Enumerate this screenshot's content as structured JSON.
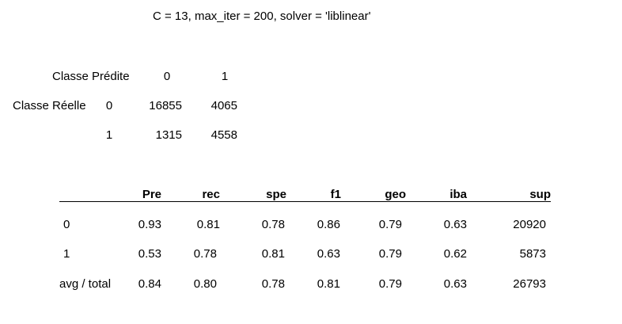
{
  "title": "C = 13, max_iter = 200, solver = 'liblinear'",
  "confusion_matrix": {
    "predicted_label": "Classe Prédite",
    "actual_label": "Classe Réelle",
    "pred_classes": [
      "0",
      "1"
    ],
    "rows": [
      {
        "class": "0",
        "values": [
          "16855",
          "4065"
        ]
      },
      {
        "class": "1",
        "values": [
          "1315",
          "4558"
        ]
      }
    ]
  },
  "report": {
    "headers": [
      "Pre",
      "rec",
      "spe",
      "f1",
      "geo",
      "iba",
      "sup"
    ],
    "rows": [
      {
        "label": "0",
        "values": [
          "0.93",
          "0.81",
          "0.78",
          "0.86",
          "0.79",
          "0.63",
          "20920"
        ]
      },
      {
        "label": "1",
        "values": [
          "0.53",
          "0.78",
          "0.81",
          "0.63",
          "0.79",
          "0.62",
          "5873"
        ]
      },
      {
        "label": "avg / total",
        "values": [
          "0.84",
          "0.80",
          "0.78",
          "0.81",
          "0.79",
          "0.63",
          "26793"
        ]
      }
    ]
  }
}
